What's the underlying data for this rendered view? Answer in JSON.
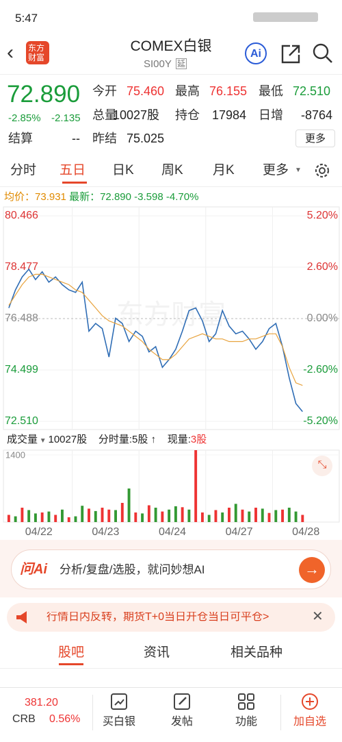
{
  "status_bar": {
    "time": "5:47"
  },
  "header": {
    "title": "COMEX白银",
    "code": "SI00Y",
    "delay": "延",
    "logo": [
      "东方",
      "财富"
    ],
    "ai": "Ai"
  },
  "quote": {
    "price": "72.890",
    "change_pct": "-2.85%",
    "change": "-2.135",
    "stats": [
      {
        "label": "今开",
        "value": "75.460"
      },
      {
        "label": "最高",
        "value": "76.155"
      },
      {
        "label": "最低",
        "value": "72.510"
      },
      {
        "label": "总量",
        "value": "10027股"
      },
      {
        "label": "持仓",
        "value": "17984"
      },
      {
        "label": "日增",
        "value": "-8764"
      },
      {
        "label": "结算",
        "value": "--"
      },
      {
        "label": "昨结",
        "value": "75.025"
      }
    ],
    "more": "更多"
  },
  "tabs": [
    "分时",
    "五日",
    "日K",
    "周K",
    "月K",
    "更多"
  ],
  "chart_data": [
    {
      "type": "line",
      "info": [
        {
          "label": "均价：",
          "value": "73.931"
        },
        {
          "label": "最新：",
          "value": "72.890"
        }
      ],
      "change": "-3.598",
      "change_pct": "-4.70%",
      "ylim": [
        72.51,
        80.466
      ],
      "yticks": [
        {
          "value": 72.51,
          "label": "72.510"
        },
        74.499,
        76.488,
        78.477,
        80.466
      ],
      "y2lim": [
        -5.2,
        5.2
      ],
      "y2ticks": [
        {
          "value": -5.2,
          "label": "-5.20%"
        },
        {
          "value": -2.6,
          "label": "-2.60%"
        },
        {
          "value": 0,
          "label": "0.00%"
        },
        {
          "value": 2.6,
          "label": "2.60%"
        },
        {
          "value": 5.2,
          "label": "5.20%"
        }
      ],
      "grid": true,
      "watermark": "东方财富",
      "series": [
        {
          "color": "#2f6db5",
          "values": [
            76.9,
            77.6,
            78.1,
            78.4,
            78.0,
            78.3,
            77.9,
            78.1,
            77.8,
            77.6,
            77.5,
            77.9,
            76.0,
            76.3,
            76.1,
            75.0,
            76.5,
            76.3,
            75.6,
            76.0,
            75.8,
            75.2,
            75.4,
            74.6,
            74.9,
            75.3,
            76.0,
            76.8,
            76.9,
            76.4,
            75.6,
            75.9,
            76.8,
            76.2,
            75.9,
            76.0,
            75.7,
            75.3,
            75.6,
            76.1,
            76.3,
            75.4,
            74.2,
            73.2,
            72.89,
            null,
            null,
            null,
            null,
            null
          ]
        },
        {
          "color": "#e8a33d",
          "values": [
            77.0,
            77.4,
            77.8,
            78.1,
            78.2,
            78.2,
            78.1,
            78.0,
            77.9,
            77.8,
            77.6,
            77.5,
            77.2,
            76.9,
            76.6,
            76.4,
            76.3,
            76.2,
            76.0,
            75.8,
            75.6,
            75.3,
            75.1,
            74.9,
            74.9,
            75.1,
            75.4,
            75.7,
            75.8,
            75.9,
            75.8,
            75.7,
            75.7,
            75.6,
            75.6,
            75.6,
            75.7,
            75.7,
            75.8,
            75.9,
            75.9,
            75.4,
            74.6,
            74.0,
            73.9,
            null,
            null,
            null,
            null,
            null
          ]
        }
      ]
    },
    {
      "type": "bar",
      "volume_label": "成交量",
      "volume_total": "10027股",
      "minute_volume": "分时量:5股",
      "current_label": "现量:",
      "current_volume": "3股",
      "ylim": [
        0,
        1500
      ],
      "yticks": [
        1400
      ],
      "days": [
        "04/22",
        "04/23",
        "04/24",
        "04/27",
        "04/28"
      ],
      "values": [
        150,
        120,
        300,
        250,
        180,
        200,
        220,
        150,
        260,
        100,
        120,
        340,
        280,
        230,
        300,
        260,
        250,
        400,
        700,
        200,
        180,
        350,
        300,
        220,
        260,
        330,
        310,
        260,
        1500,
        200,
        150,
        250,
        200,
        300,
        380,
        260,
        220,
        300,
        280,
        190,
        250,
        260,
        300,
        220,
        150,
        null,
        null,
        null,
        null,
        null
      ],
      "colors": [
        "#e33",
        "#393",
        "#e33",
        "#393",
        "#393",
        "#e33",
        "#393",
        "#e33",
        "#393",
        "#e33",
        "#393",
        "#393",
        "#e33",
        "#393",
        "#e33",
        "#e33",
        "#393",
        "#e33",
        "#393",
        "#e33",
        "#393",
        "#e33",
        "#393",
        "#e33",
        "#393",
        "#393",
        "#e33",
        "#393",
        "#e33",
        "#e33",
        "#393",
        "#e33",
        "#393",
        "#e33",
        "#393",
        "#e33",
        "#393",
        "#e33",
        "#393",
        "#e33",
        "#393",
        "#e33",
        "#393",
        "#393",
        "#e33",
        "#393",
        "#393",
        "#393",
        "#393",
        "#393"
      ]
    }
  ],
  "ai_bar": {
    "brand": "问Ai",
    "prompt": "分析/复盘/选股，就问妙想AI"
  },
  "banner": "行情日内反转，期货T+0当日开仓当日可平仓>",
  "section_tabs": [
    "股吧",
    "资讯",
    "相关品种"
  ],
  "bottom_bar": {
    "index_value": "381.20",
    "index_name": "CRB",
    "index_change": "0.56%",
    "buttons": [
      "买白银",
      "发帖",
      "功能",
      "加自选"
    ]
  }
}
